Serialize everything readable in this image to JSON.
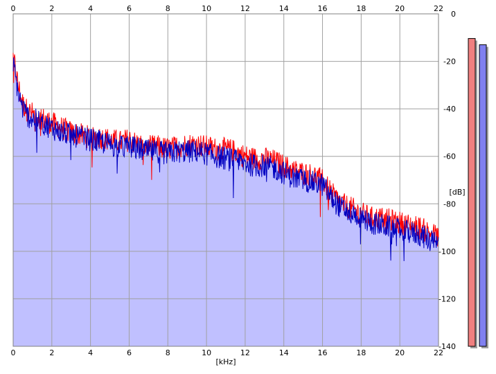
{
  "chart_data": {
    "type": "area",
    "title": "",
    "xlabel": "[kHz]",
    "ylabel": "[dB]",
    "xlim": [
      0,
      22
    ],
    "ylim": [
      -140,
      0
    ],
    "x_ticks": [
      "0",
      "2",
      "4",
      "6",
      "8",
      "10",
      "12",
      "14",
      "16",
      "18",
      "20",
      "22"
    ],
    "y_ticks": [
      "0",
      "-20",
      "-40",
      "-60",
      "-80",
      "-100",
      "-120",
      "-140"
    ],
    "grid": true,
    "series": [
      {
        "color": "#ff0000",
        "x": [
          0,
          0.1,
          0.25,
          0.5,
          0.75,
          1,
          1.5,
          2,
          2.5,
          3,
          3.5,
          4,
          4.5,
          5,
          5.5,
          6,
          6.5,
          7,
          7.5,
          8,
          8.5,
          9,
          9.5,
          10,
          10.5,
          11,
          11.5,
          12,
          12.5,
          13,
          13.5,
          14,
          14.5,
          15,
          15.5,
          16,
          16.5,
          17,
          17.5,
          18,
          18.5,
          19,
          19.5,
          20,
          20.5,
          21,
          21.5,
          22
        ],
        "values": [
          -18,
          -22,
          -30,
          -38,
          -41,
          -42,
          -44,
          -46,
          -48,
          -50,
          -51,
          -52,
          -52,
          -53,
          -54,
          -53,
          -55,
          -56,
          -56,
          -57,
          -56,
          -55,
          -55,
          -56,
          -57,
          -57,
          -58,
          -60,
          -61,
          -61,
          -62,
          -64,
          -66,
          -67,
          -68,
          -70,
          -76,
          -80,
          -82,
          -84,
          -86,
          -86,
          -87,
          -88,
          -89,
          -90,
          -92,
          -94
        ]
      },
      {
        "color": "#0000c0",
        "x": [
          0,
          0.1,
          0.25,
          0.5,
          0.75,
          1,
          1.5,
          2,
          2.5,
          3,
          3.5,
          4,
          4.5,
          5,
          5.5,
          6,
          6.5,
          7,
          7.5,
          8,
          8.5,
          9,
          9.5,
          10,
          10.5,
          11,
          11.5,
          12,
          12.5,
          13,
          13.5,
          14,
          14.5,
          15,
          15.5,
          16,
          16.5,
          17,
          17.5,
          18,
          18.5,
          19,
          19.5,
          20,
          20.5,
          21,
          21.5,
          22
        ],
        "values": [
          -22,
          -25,
          -33,
          -40,
          -43,
          -44,
          -46,
          -48,
          -50,
          -51,
          -52,
          -53,
          -54,
          -55,
          -56,
          -56,
          -57,
          -58,
          -58,
          -59,
          -58,
          -58,
          -58,
          -59,
          -60,
          -61,
          -62,
          -63,
          -64,
          -64,
          -65,
          -67,
          -69,
          -70,
          -71,
          -72,
          -78,
          -82,
          -84,
          -86,
          -88,
          -89,
          -90,
          -91,
          -92,
          -93,
          -95,
          -98
        ]
      }
    ],
    "fill_color": "#c0c0ff",
    "meters": [
      {
        "color": "#f08080",
        "value_db": -6
      },
      {
        "color": "#8080f0",
        "value_db": -10
      }
    ]
  }
}
